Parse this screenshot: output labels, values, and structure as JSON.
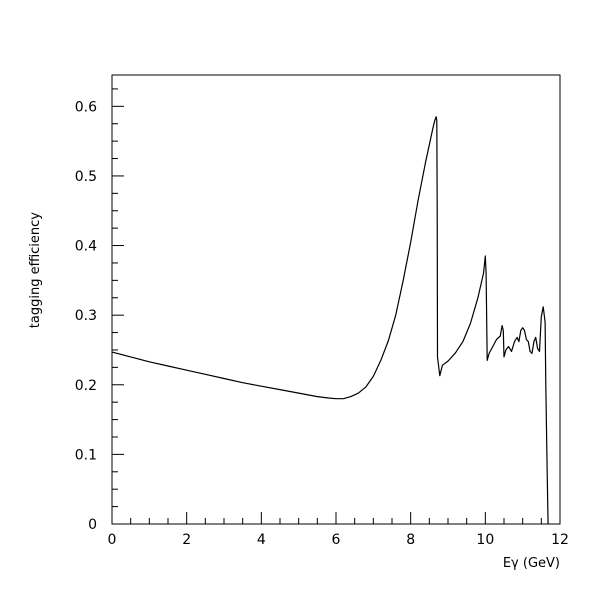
{
  "chart_data": {
    "type": "line",
    "title": "",
    "xlabel": "Eγ (GeV)",
    "ylabel": "tagging efficiency",
    "xlim": [
      0,
      12
    ],
    "ylim": [
      0,
      0.645
    ],
    "x_ticks": [
      0,
      2,
      4,
      6,
      8,
      10,
      12
    ],
    "y_ticks": [
      0,
      0.1,
      0.2,
      0.3,
      0.4,
      0.5,
      0.6
    ],
    "x_tick_labels": [
      "0",
      "2",
      "4",
      "6",
      "8",
      "10",
      "12"
    ],
    "y_tick_labels": [
      "0",
      "0.1",
      "0.2",
      "0.3",
      "0.4",
      "0.5",
      "0.6"
    ],
    "x_minor_step": 0.5,
    "y_minor_step": 0.025,
    "grid": false,
    "series": [
      {
        "x": [
          0.0,
          0.5,
          1.0,
          1.5,
          2.0,
          2.5,
          3.0,
          3.5,
          4.0,
          4.5,
          5.0,
          5.5,
          5.8,
          6.0,
          6.2,
          6.4,
          6.6,
          6.8,
          7.0,
          7.2,
          7.4,
          7.6,
          7.8,
          8.0,
          8.2,
          8.4,
          8.6,
          8.65,
          8.68,
          8.7,
          8.71,
          8.72,
          8.78,
          8.85,
          9.0,
          9.2,
          9.4,
          9.6,
          9.8,
          9.95,
          10.0,
          10.02,
          10.05,
          10.1,
          10.2,
          10.3,
          10.4,
          10.45,
          10.48,
          10.5,
          10.55,
          10.62,
          10.7,
          10.78,
          10.85,
          10.9,
          10.95,
          11.0,
          11.05,
          11.1,
          11.15,
          11.2,
          11.25,
          11.3,
          11.35,
          11.4,
          11.45,
          11.5,
          11.55,
          11.6,
          11.62,
          11.65,
          11.67,
          11.68
        ],
        "values": [
          0.247,
          0.24,
          0.233,
          0.227,
          0.221,
          0.215,
          0.209,
          0.203,
          0.198,
          0.193,
          0.188,
          0.183,
          0.181,
          0.18,
          0.18,
          0.183,
          0.188,
          0.197,
          0.212,
          0.235,
          0.263,
          0.3,
          0.35,
          0.405,
          0.465,
          0.52,
          0.57,
          0.58,
          0.585,
          0.58,
          0.45,
          0.24,
          0.213,
          0.228,
          0.234,
          0.246,
          0.262,
          0.288,
          0.325,
          0.36,
          0.385,
          0.36,
          0.235,
          0.245,
          0.255,
          0.265,
          0.27,
          0.285,
          0.278,
          0.24,
          0.25,
          0.255,
          0.248,
          0.262,
          0.268,
          0.262,
          0.278,
          0.282,
          0.278,
          0.265,
          0.262,
          0.248,
          0.245,
          0.262,
          0.268,
          0.252,
          0.248,
          0.298,
          0.312,
          0.29,
          0.2,
          0.1,
          0.03,
          0.0
        ]
      }
    ]
  }
}
